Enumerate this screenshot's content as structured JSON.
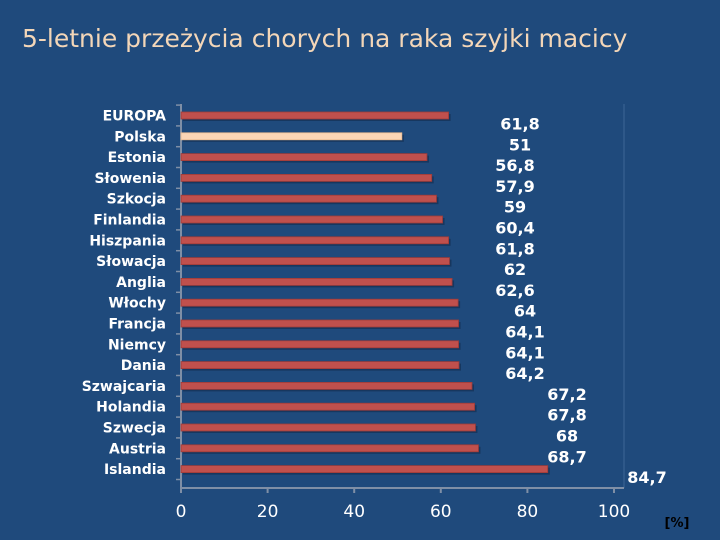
{
  "slide": {
    "title": "5-letnie przeżycia chorych na raka szyjki macicy"
  },
  "colors": {
    "background": "#1f4a7c",
    "title": "#f3d6b8",
    "bar": "#c0504d",
    "highlight_bar": "#fbd5b5",
    "text": "#ffffff"
  },
  "chart_data": {
    "type": "bar",
    "orientation": "horizontal",
    "title": "5-letnie przeżycia chorych na raka szyjki macicy",
    "categories": [
      "EUROPA",
      "Polska",
      "Estonia",
      "Słowenia",
      "Szkocja",
      "Finlandia",
      "Hiszpania",
      "Słowacja",
      "Anglia",
      "Włochy",
      "Francja",
      "Niemcy",
      "Dania",
      "Szwajcaria",
      "Holandia",
      "Szwecja",
      "Austria",
      "Islandia"
    ],
    "values": [
      61.8,
      51,
      56.8,
      57.9,
      59,
      60.4,
      61.8,
      62,
      62.6,
      64,
      64.1,
      64.1,
      64.2,
      67.2,
      67.8,
      68,
      68.7,
      84.7
    ],
    "value_labels": [
      "61,8",
      "51",
      "56,8",
      "57,9",
      "59",
      "60,4",
      "61,8",
      "62",
      "62,6",
      "64",
      "64,1",
      "64,1",
      "64,2",
      "67,2",
      "67,8",
      "68",
      "68,7",
      "84,7"
    ],
    "highlight": "Polska",
    "xlim": [
      0,
      100
    ],
    "xticks": [
      0,
      20,
      40,
      60,
      80,
      100
    ],
    "xlabel": "[%]",
    "ylabel": "",
    "grid": false
  }
}
